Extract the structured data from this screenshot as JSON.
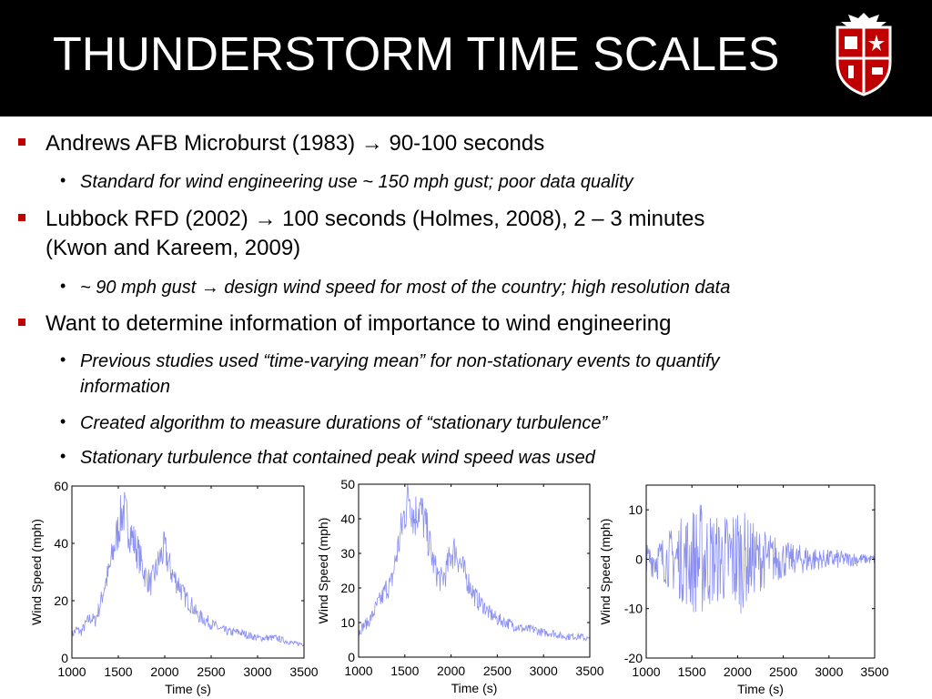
{
  "slide": {
    "title": "THUNDERSTORM TIME SCALES",
    "logo_icon": "university-shield-logo-icon",
    "accent_color": "#c00000"
  },
  "bullets": [
    {
      "level": 1,
      "text_before": "Andrews AFB Microburst (1983) ",
      "arrow": "→",
      "text_after": " 90-100 seconds"
    },
    {
      "level": 2,
      "text": "Standard for wind engineering use ~ 150 mph gust; poor data quality"
    },
    {
      "level": 1,
      "text_before": "Lubbock RFD (2002) ",
      "arrow": "→",
      "text_after": " 100 seconds (Holmes, 2008), 2 – 3 minutes",
      "text_line2": "(Kwon and Kareem, 2009)"
    },
    {
      "level": 2,
      "text_before": "~ 90 mph gust  ",
      "arrow": "→",
      "text_after": " design wind speed for most of the country; high resolution data"
    },
    {
      "level": 1,
      "text": "Want to determine information of importance to wind engineering"
    },
    {
      "level": 2,
      "text": "Previous studies used “time-varying mean” for non-stationary events to quantify",
      "text_line2": "information"
    },
    {
      "level": 2,
      "text": "Created algorithm to measure durations of “stationary turbulence”"
    },
    {
      "level": 2,
      "text": "Stationary turbulence that contained peak wind speed was used"
    }
  ],
  "chart_data": [
    {
      "type": "line",
      "xlabel": "Time (s)",
      "ylabel": "Wind Speed (mph)",
      "xlim": [
        1000,
        3500
      ],
      "ylim": [
        0,
        60
      ],
      "xticks": [
        1000,
        1500,
        2000,
        2500,
        3000,
        3500
      ],
      "yticks": [
        0,
        20,
        40,
        60
      ],
      "color": "#8a8ff0",
      "series": [
        {
          "x": [
            1000,
            1050,
            1100,
            1150,
            1200,
            1250,
            1300,
            1350,
            1400,
            1450,
            1500,
            1550,
            1600,
            1650,
            1700,
            1750,
            1800,
            1850,
            1900,
            1950,
            2000,
            2050,
            2100,
            2150,
            2200,
            2250,
            2300,
            2350,
            2400,
            2450,
            2500,
            2600,
            2700,
            2800,
            2900,
            3000,
            3100,
            3200,
            3300,
            3400,
            3500
          ],
          "y": [
            8,
            10,
            9,
            12,
            14,
            13,
            18,
            25,
            30,
            38,
            45,
            52,
            47,
            42,
            38,
            33,
            28,
            26,
            30,
            35,
            38,
            32,
            28,
            26,
            22,
            20,
            18,
            15,
            14,
            13,
            12,
            10,
            9,
            9,
            8,
            7,
            7,
            7,
            6,
            5,
            5
          ]
        }
      ]
    },
    {
      "type": "line",
      "xlabel": "Time (s)",
      "ylabel": "Wind Speed (mph)",
      "xlim": [
        1000,
        3500
      ],
      "ylim": [
        0,
        50
      ],
      "xticks": [
        1000,
        1500,
        2000,
        2500,
        3000,
        3500
      ],
      "yticks": [
        0,
        10,
        20,
        30,
        40,
        50
      ],
      "color": "#8a8ff0",
      "series": [
        {
          "x": [
            1000,
            1050,
            1100,
            1150,
            1200,
            1250,
            1300,
            1350,
            1400,
            1450,
            1500,
            1550,
            1600,
            1650,
            1700,
            1750,
            1800,
            1850,
            1900,
            1950,
            2000,
            2050,
            2100,
            2150,
            2200,
            2250,
            2300,
            2350,
            2400,
            2450,
            2500,
            2600,
            2700,
            2800,
            2900,
            3000,
            3100,
            3200,
            3300,
            3400,
            3500
          ],
          "y": [
            7,
            9,
            10,
            12,
            15,
            17,
            20,
            21,
            28,
            35,
            42,
            48,
            40,
            44,
            40,
            35,
            28,
            24,
            22,
            25,
            30,
            31,
            27,
            24,
            21,
            18,
            16,
            15,
            13,
            12,
            11,
            10,
            9,
            8,
            8,
            7,
            7,
            6,
            6,
            6,
            5
          ]
        }
      ]
    },
    {
      "type": "line",
      "xlabel": "Time (s)",
      "ylabel": "Wind Speed (mph)",
      "xlim": [
        1000,
        3500
      ],
      "ylim": [
        -20,
        15
      ],
      "xticks": [
        1000,
        1500,
        2000,
        2500,
        3000,
        3500
      ],
      "yticks": [
        -20,
        -10,
        0,
        10
      ],
      "color": "#8a8ff0",
      "series": [
        {
          "x": [
            1000,
            1100,
            1200,
            1300,
            1400,
            1500,
            1600,
            1700,
            1800,
            1900,
            2000,
            2100,
            2200,
            2300,
            2400,
            2500,
            2600,
            2700,
            2800,
            2900,
            3000,
            3100,
            3200,
            3300,
            3400,
            3500
          ],
          "amp": [
            3,
            4,
            5,
            7,
            9,
            11,
            12,
            10,
            9,
            10,
            12,
            9,
            7,
            6,
            5,
            4,
            3,
            3,
            3,
            2,
            2,
            2,
            1.5,
            1.5,
            1,
            1
          ]
        }
      ]
    }
  ]
}
